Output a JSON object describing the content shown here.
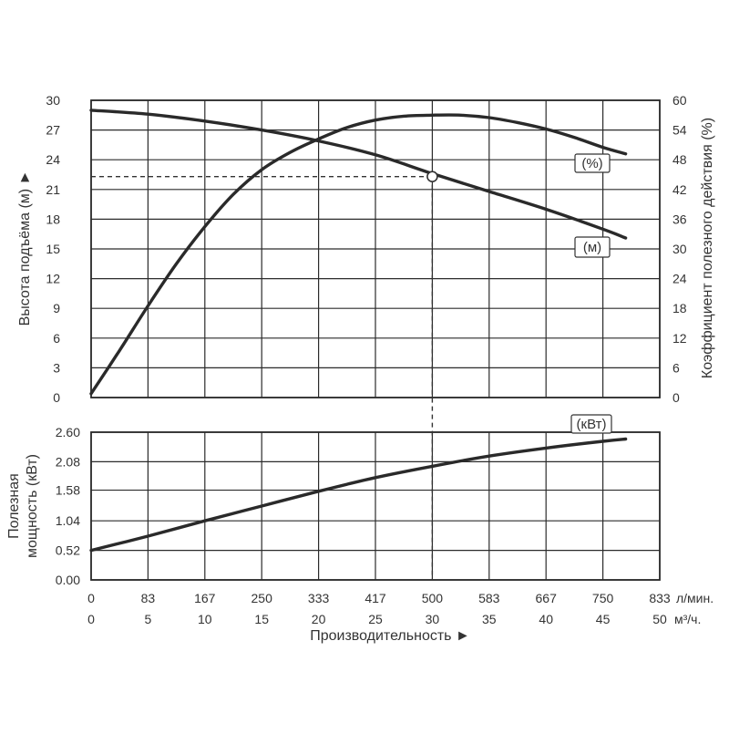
{
  "colors": {
    "line": "#2a2a2a",
    "grid": "#2b2b2b",
    "text": "#333333",
    "background": "#ffffff"
  },
  "chart_data": [
    {
      "type": "line",
      "panel": "head-efficiency",
      "x_unit_lpm": "л/мин.",
      "x_unit_m3h": "м³/ч.",
      "xlabel": "Производительность ►",
      "ylabel_left": "Высота подъёма (м) ►",
      "ylabel_right": "Коэффициент полезного действия (%)",
      "x_m3h_range": [
        0,
        50
      ],
      "ylim_left": [
        0,
        30
      ],
      "ylim_right": [
        0,
        60
      ],
      "grid": true,
      "left_ticks": [
        "0",
        "3",
        "6",
        "9",
        "12",
        "15",
        "18",
        "21",
        "24",
        "27",
        "30"
      ],
      "right_ticks": [
        "0",
        "6",
        "12",
        "18",
        "24",
        "30",
        "36",
        "42",
        "48",
        "54",
        "60"
      ],
      "series": [
        {
          "name": "(м)",
          "axis": "left",
          "x": [
            0,
            5,
            10,
            15,
            20,
            25,
            30,
            35,
            40,
            45,
            47
          ],
          "values": [
            29.0,
            28.6,
            27.9,
            27.0,
            25.9,
            24.5,
            22.6,
            20.8,
            19.0,
            17.0,
            16.1
          ]
        },
        {
          "name": "(%)",
          "axis": "right",
          "x": [
            0,
            2.5,
            5,
            7.5,
            10,
            12.5,
            15,
            17.5,
            20,
            22.5,
            25,
            27.5,
            30,
            32.5,
            35,
            37.5,
            40,
            42.5,
            45,
            47
          ],
          "values": [
            0.8,
            9.5,
            18.5,
            27.0,
            34.5,
            41.0,
            46.0,
            49.5,
            52.2,
            54.5,
            56.0,
            56.8,
            57.0,
            57.0,
            56.5,
            55.5,
            54.2,
            52.5,
            50.5,
            49.2
          ]
        }
      ],
      "marker": {
        "x": 30,
        "y": 22.3
      }
    },
    {
      "type": "line",
      "panel": "power",
      "ylabel": "Полезная мощность (кВт)",
      "ylim": [
        0,
        2.6
      ],
      "grid": true,
      "tick_values": [
        0,
        0.52,
        1.04,
        1.58,
        2.08,
        2.6
      ],
      "tick_labels": [
        "0.00",
        "0.52",
        "1.04",
        "1.58",
        "2.08",
        "2.60"
      ],
      "series": [
        {
          "name": "(кВт)",
          "x": [
            0,
            5,
            10,
            15,
            20,
            25,
            30,
            35,
            40,
            45,
            47
          ],
          "values": [
            0.52,
            0.77,
            1.04,
            1.3,
            1.56,
            1.8,
            2.0,
            2.18,
            2.32,
            2.44,
            2.48
          ]
        }
      ]
    }
  ],
  "x_axis": {
    "lpm_ticks": [
      "0",
      "83",
      "167",
      "250",
      "333",
      "417",
      "500",
      "583",
      "667",
      "750",
      "833"
    ],
    "m3h_ticks": [
      "0",
      "5",
      "10",
      "15",
      "20",
      "25",
      "30",
      "35",
      "40",
      "45",
      "50"
    ],
    "lpm_unit": "л/мин.",
    "m3h_unit": "м³/ч.",
    "title": "Производительность ►"
  },
  "y_titles": {
    "head": "Высота подъёма (м) ►",
    "efficiency": "Коэффициент полезного действия (%)",
    "power_line1": "Полезная",
    "power_line2": "мощность (кВт)"
  },
  "tags": {
    "efficiency": "(%)",
    "head": "(м)",
    "power": "(кВт)"
  }
}
